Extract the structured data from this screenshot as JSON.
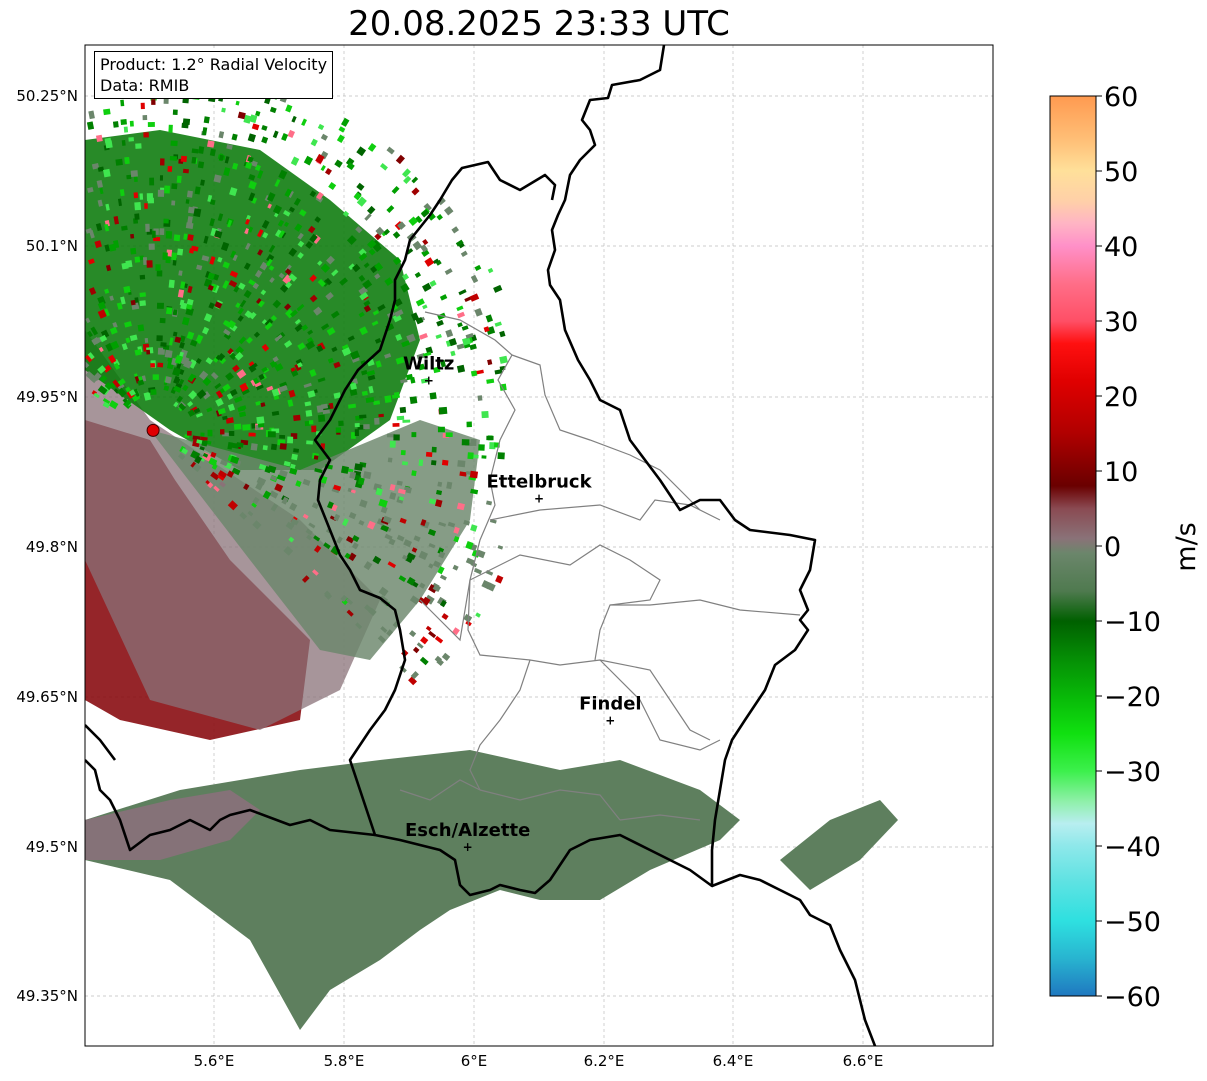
{
  "title": "20.08.2025 23:33 UTC",
  "info": {
    "product": "Product: 1.2° Radial Velocity",
    "source": "Data: RMIB"
  },
  "lat_labels": [
    "50.25°N",
    "50.1°N",
    "49.95°N",
    "49.8°N",
    "49.65°N",
    "49.5°N",
    "49.35°N"
  ],
  "lon_labels": [
    "5.6°E",
    "5.8°E",
    "6°E",
    "6.2°E",
    "6.4°E",
    "6.6°E"
  ],
  "cities": [
    {
      "name": "Wiltz",
      "lon": 5.93,
      "lat": 49.966
    },
    {
      "name": "Ettelbruck",
      "lon": 6.1,
      "lat": 49.848
    },
    {
      "name": "Findel",
      "lon": 6.21,
      "lat": 49.626
    },
    {
      "name": "Esch/Alzette",
      "lon": 5.99,
      "lat": 49.5
    }
  ],
  "radar_site": {
    "lon": 5.505,
    "lat": 49.915
  },
  "extent": {
    "lon": [
      5.4,
      6.8
    ],
    "lat": [
      49.3,
      50.3
    ]
  },
  "colorbar": {
    "unit": "m/s",
    "ticks": [
      "−60",
      "−50",
      "−40",
      "−30",
      "−20",
      "−10",
      "0",
      "10",
      "20",
      "30",
      "40",
      "50",
      "60"
    ],
    "range": [
      -60,
      60
    ],
    "stops": [
      [
        -60,
        "#1f78c0"
      ],
      [
        -55,
        "#28b4d0"
      ],
      [
        -50,
        "#2ee0e0"
      ],
      [
        -45,
        "#5ce2e2"
      ],
      [
        -40,
        "#8ee8ea"
      ],
      [
        -37,
        "#b8eef0"
      ],
      [
        -34,
        "#8ef0a8"
      ],
      [
        -30,
        "#3cf04c"
      ],
      [
        -25,
        "#10e010"
      ],
      [
        -20,
        "#08b808"
      ],
      [
        -15,
        "#058e05"
      ],
      [
        -10,
        "#006000"
      ],
      [
        -6,
        "#4f7a4f"
      ],
      [
        -1,
        "#6b866b"
      ],
      [
        1,
        "#8a7278"
      ],
      [
        5,
        "#8a4a52"
      ],
      [
        8,
        "#6a0000"
      ],
      [
        15,
        "#b00000"
      ],
      [
        22,
        "#e00000"
      ],
      [
        27,
        "#ff1010"
      ],
      [
        30,
        "#ff4f66"
      ],
      [
        35,
        "#ff6e88"
      ],
      [
        40,
        "#ff90c8"
      ],
      [
        43,
        "#ffb4c4"
      ],
      [
        46,
        "#ffd0a8"
      ],
      [
        50,
        "#ffe09a"
      ],
      [
        54,
        "#ffc078"
      ],
      [
        60,
        "#ff9a50"
      ]
    ]
  }
}
